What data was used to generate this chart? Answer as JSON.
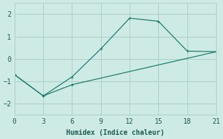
{
  "xlabel": "Humidex (Indice chaleur)",
  "background_color": "#ceeae4",
  "grid_color": "#a8cfc8",
  "line_color": "#1a7a6e",
  "line1_x": [
    0,
    3,
    6,
    9,
    12,
    15,
    18,
    21
  ],
  "line1_y": [
    -0.7,
    -1.65,
    -0.8,
    0.45,
    1.82,
    1.68,
    0.35,
    0.32
  ],
  "line2_x": [
    0,
    3,
    6,
    21
  ],
  "line2_y": [
    -0.7,
    -1.65,
    -1.15,
    0.32
  ],
  "xlim": [
    0,
    21
  ],
  "ylim": [
    -2.5,
    2.5
  ],
  "xticks": [
    0,
    3,
    6,
    9,
    12,
    15,
    18,
    21
  ],
  "yticks": [
    -2,
    -1,
    0,
    1,
    2
  ]
}
